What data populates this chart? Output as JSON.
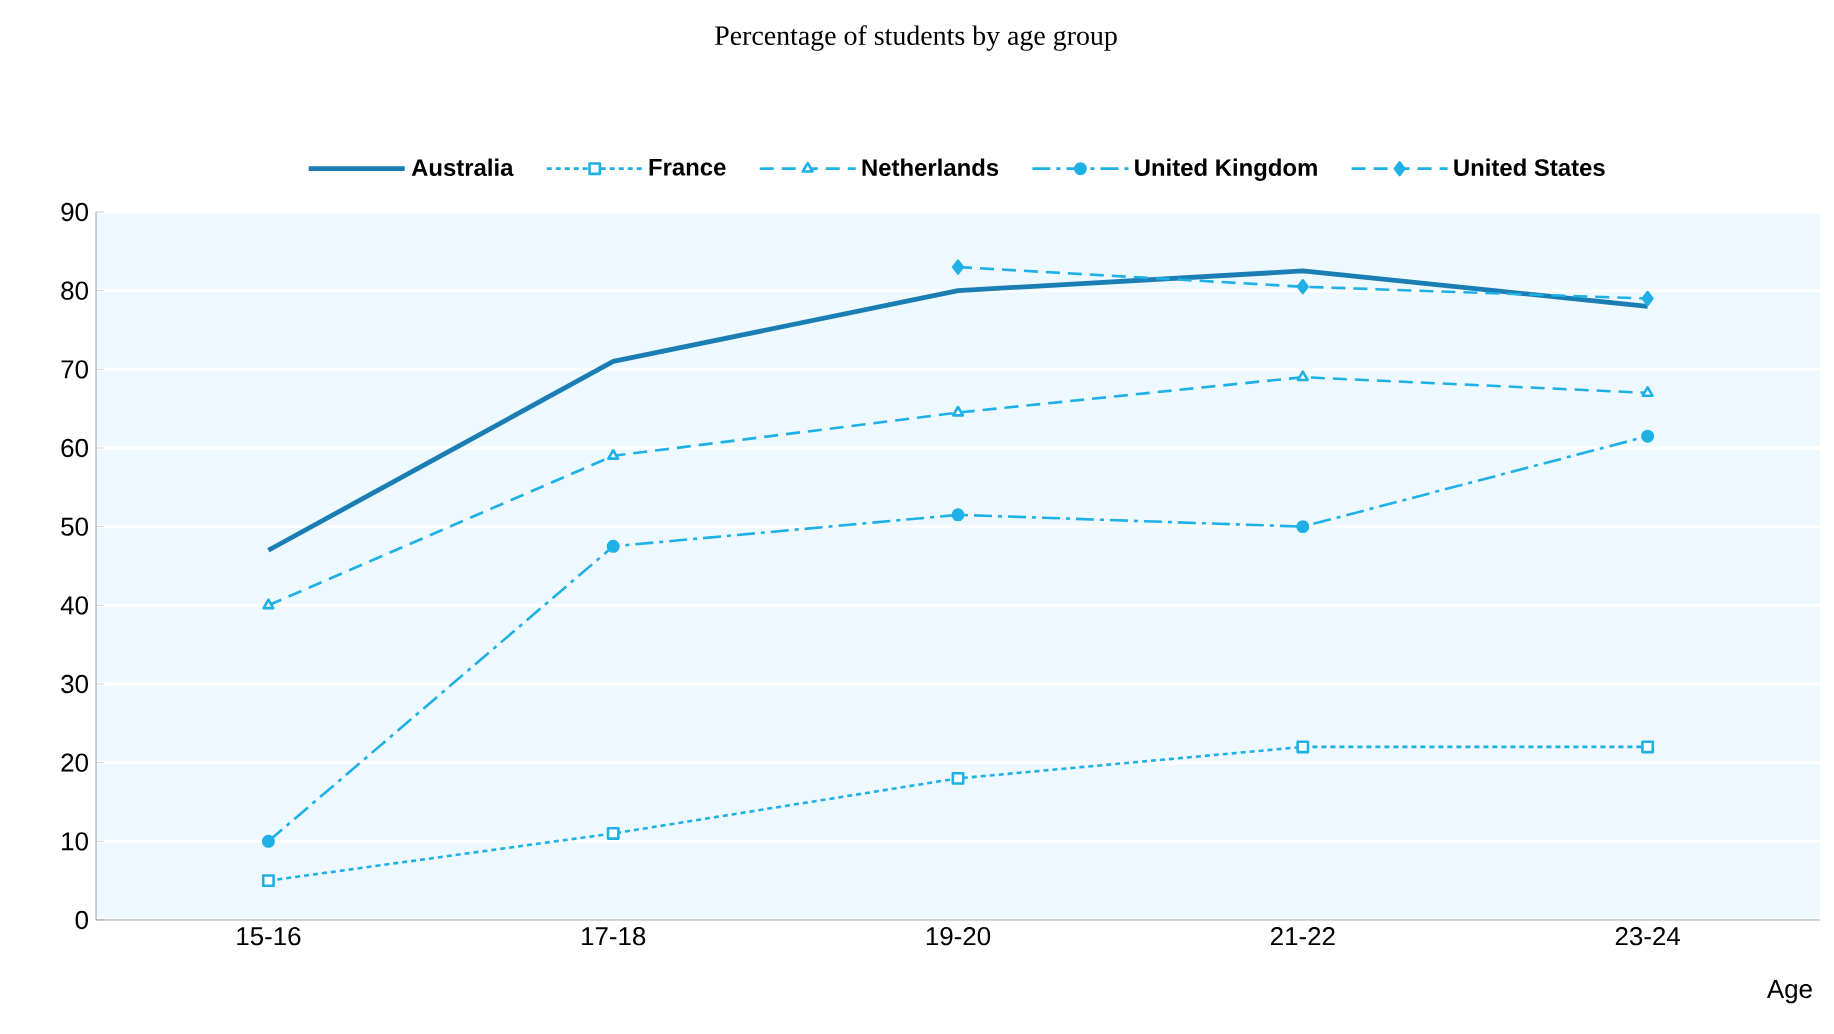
{
  "chart_data": {
    "type": "line",
    "title": "Percentage of students by age group",
    "xlabel": "Age",
    "categories": [
      "15-16",
      "17-18",
      "19-20",
      "21-22",
      "23-24"
    ],
    "ylim": [
      0,
      90
    ],
    "yticks": [
      0,
      10,
      20,
      30,
      40,
      50,
      60,
      70,
      80,
      90
    ],
    "grid": "y",
    "legend": "top",
    "series": [
      {
        "name": "Australia",
        "color": "#1a7db4",
        "line_style": "solid",
        "marker": "none",
        "values": [
          47,
          71,
          80,
          82.5,
          78
        ]
      },
      {
        "name": "France",
        "color": "#1fb0e6",
        "line_style": "dotted",
        "marker": "square",
        "values": [
          5,
          11,
          18,
          22,
          22
        ]
      },
      {
        "name": "Netherlands",
        "color": "#1fb0e6",
        "line_style": "dashed",
        "marker": "triangle",
        "values": [
          40,
          59,
          64.5,
          69,
          67
        ]
      },
      {
        "name": "United Kingdom",
        "color": "#1fb0e6",
        "line_style": "dashdot",
        "marker": "circle",
        "values": [
          10,
          47.5,
          51.5,
          50,
          61.5
        ]
      },
      {
        "name": "United States",
        "color": "#1fb0e6",
        "line_style": "dashed",
        "marker": "diamond",
        "values": [
          null,
          null,
          83,
          80.5,
          79
        ]
      }
    ]
  }
}
